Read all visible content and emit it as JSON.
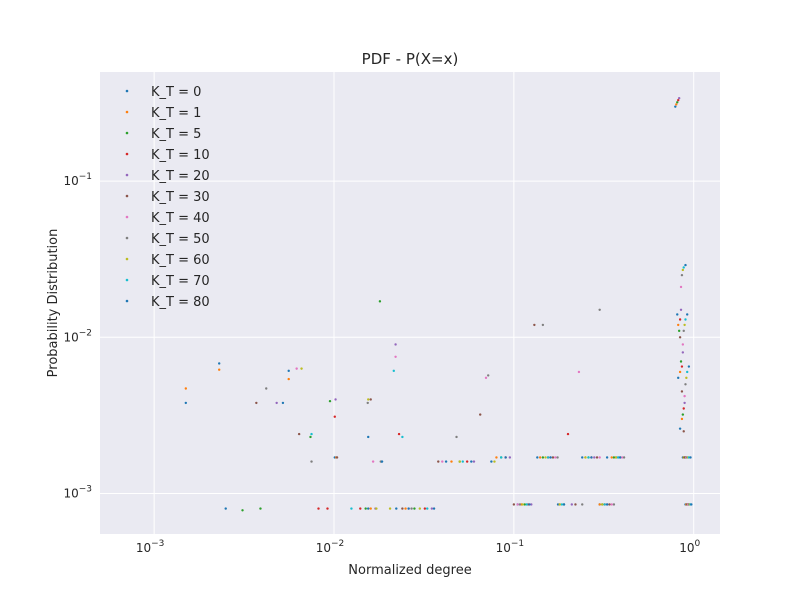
{
  "chart_data": {
    "type": "scatter",
    "title": "PDF - P(X=x)",
    "xlabel": "Normalized degree",
    "ylabel": "Probability Distribution",
    "xscale": "log",
    "yscale": "log",
    "xlim": [
      0.0005,
      1.4
    ],
    "ylim": [
      0.00055,
      0.5
    ],
    "grid": true,
    "legend": "upper-left",
    "x_ticks": [
      {
        "value": 0.001,
        "base": "10",
        "exp": "−3"
      },
      {
        "value": 0.01,
        "base": "10",
        "exp": "−2"
      },
      {
        "value": 0.1,
        "base": "10",
        "exp": "−1"
      },
      {
        "value": 1,
        "base": "10",
        "exp": "0"
      }
    ],
    "y_ticks": [
      {
        "value": 0.001,
        "base": "10",
        "exp": "−3"
      },
      {
        "value": 0.01,
        "base": "10",
        "exp": "−2"
      },
      {
        "value": 0.1,
        "base": "10",
        "exp": "−1"
      }
    ],
    "series": [
      {
        "name": "K_T = 0",
        "color": "#1f77b4",
        "points": [
          [
            0.0015,
            0.0038
          ],
          [
            0.0023,
            0.0068
          ],
          [
            0.0052,
            0.0038
          ],
          [
            0.0056,
            0.0061
          ],
          [
            0.0101,
            0.0017
          ],
          [
            0.0155,
            0.0008
          ],
          [
            0.0184,
            0.0016
          ],
          [
            0.0222,
            0.0008
          ],
          [
            0.042,
            0.0016
          ],
          [
            0.075,
            0.0016
          ],
          [
            0.105,
            0.00085
          ],
          [
            0.135,
            0.0017
          ],
          [
            0.176,
            0.00085
          ],
          [
            0.24,
            0.0017
          ],
          [
            0.3,
            0.00085
          ],
          [
            0.33,
            0.0017
          ],
          [
            0.79,
            0.3
          ],
          [
            0.81,
            0.014
          ],
          [
            0.82,
            0.0055
          ],
          [
            0.84,
            0.0026
          ],
          [
            0.87,
            0.0017
          ],
          [
            0.9,
            0.00085
          ]
        ]
      },
      {
        "name": "K_T = 1",
        "color": "#ff7f0e",
        "points": [
          [
            0.0015,
            0.0047
          ],
          [
            0.0023,
            0.0062
          ],
          [
            0.0056,
            0.0054
          ],
          [
            0.0103,
            0.0017
          ],
          [
            0.016,
            0.0008
          ],
          [
            0.025,
            0.0008
          ],
          [
            0.045,
            0.0016
          ],
          [
            0.08,
            0.0017
          ],
          [
            0.11,
            0.00085
          ],
          [
            0.14,
            0.0017
          ],
          [
            0.18,
            0.00085
          ],
          [
            0.25,
            0.0017
          ],
          [
            0.3,
            0.00085
          ],
          [
            0.35,
            0.0017
          ],
          [
            0.8,
            0.31
          ],
          [
            0.82,
            0.012
          ],
          [
            0.84,
            0.006
          ],
          [
            0.86,
            0.003
          ],
          [
            0.88,
            0.0017
          ],
          [
            0.91,
            0.00085
          ]
        ]
      },
      {
        "name": "K_T = 5",
        "color": "#2ca02c",
        "points": [
          [
            0.0031,
            0.00078
          ],
          [
            0.0039,
            0.0008
          ],
          [
            0.0074,
            0.0023
          ],
          [
            0.0095,
            0.0039
          ],
          [
            0.015,
            0.0008
          ],
          [
            0.018,
            0.017
          ],
          [
            0.028,
            0.0008
          ],
          [
            0.05,
            0.0016
          ],
          [
            0.085,
            0.0017
          ],
          [
            0.115,
            0.00085
          ],
          [
            0.145,
            0.0017
          ],
          [
            0.19,
            0.00085
          ],
          [
            0.26,
            0.0017
          ],
          [
            0.31,
            0.00085
          ],
          [
            0.36,
            0.0017
          ],
          [
            0.81,
            0.32
          ],
          [
            0.83,
            0.011
          ],
          [
            0.85,
            0.007
          ],
          [
            0.87,
            0.0032
          ],
          [
            0.89,
            0.0017
          ],
          [
            0.92,
            0.00085
          ]
        ]
      },
      {
        "name": "K_T = 10",
        "color": "#d62728",
        "points": [
          [
            0.0082,
            0.0008
          ],
          [
            0.0092,
            0.0008
          ],
          [
            0.0101,
            0.0031
          ],
          [
            0.014,
            0.0008
          ],
          [
            0.023,
            0.0024
          ],
          [
            0.032,
            0.0008
          ],
          [
            0.055,
            0.0016
          ],
          [
            0.09,
            0.0017
          ],
          [
            0.12,
            0.00085
          ],
          [
            0.155,
            0.0017
          ],
          [
            0.2,
            0.0024
          ],
          [
            0.27,
            0.0017
          ],
          [
            0.32,
            0.00085
          ],
          [
            0.37,
            0.0017
          ],
          [
            0.82,
            0.33
          ],
          [
            0.84,
            0.013
          ],
          [
            0.86,
            0.0065
          ],
          [
            0.88,
            0.0035
          ],
          [
            0.9,
            0.0017
          ],
          [
            0.93,
            0.00085
          ]
        ]
      },
      {
        "name": "K_T = 20",
        "color": "#9467bd",
        "points": [
          [
            0.0048,
            0.0038
          ],
          [
            0.0102,
            0.004
          ],
          [
            0.017,
            0.0008
          ],
          [
            0.022,
            0.009
          ],
          [
            0.035,
            0.0008
          ],
          [
            0.06,
            0.0016
          ],
          [
            0.095,
            0.0017
          ],
          [
            0.125,
            0.00085
          ],
          [
            0.16,
            0.0017
          ],
          [
            0.21,
            0.00085
          ],
          [
            0.28,
            0.0017
          ],
          [
            0.33,
            0.00085
          ],
          [
            0.38,
            0.0017
          ],
          [
            0.83,
            0.34
          ],
          [
            0.85,
            0.015
          ],
          [
            0.87,
            0.008
          ],
          [
            0.89,
            0.0038
          ],
          [
            0.91,
            0.0017
          ],
          [
            0.94,
            0.00085
          ]
        ]
      },
      {
        "name": "K_T = 30",
        "color": "#8c564b",
        "points": [
          [
            0.0037,
            0.0038
          ],
          [
            0.0064,
            0.0024
          ],
          [
            0.0104,
            0.0017
          ],
          [
            0.016,
            0.004
          ],
          [
            0.024,
            0.0008
          ],
          [
            0.038,
            0.0016
          ],
          [
            0.065,
            0.0032
          ],
          [
            0.1,
            0.00085
          ],
          [
            0.13,
            0.012
          ],
          [
            0.165,
            0.0017
          ],
          [
            0.22,
            0.00085
          ],
          [
            0.29,
            0.0017
          ],
          [
            0.34,
            0.00085
          ],
          [
            0.39,
            0.0017
          ],
          [
            0.84,
            0.01
          ],
          [
            0.86,
            0.0045
          ],
          [
            0.88,
            0.0025
          ],
          [
            0.9,
            0.0017
          ],
          [
            0.92,
            0.00085
          ]
        ]
      },
      {
        "name": "K_T = 40",
        "color": "#e377c2",
        "points": [
          [
            0.0062,
            0.0063
          ],
          [
            0.0165,
            0.0016
          ],
          [
            0.022,
            0.0075
          ],
          [
            0.026,
            0.0008
          ],
          [
            0.04,
            0.0016
          ],
          [
            0.07,
            0.0055
          ],
          [
            0.105,
            0.00085
          ],
          [
            0.17,
            0.0017
          ],
          [
            0.23,
            0.006
          ],
          [
            0.3,
            0.0017
          ],
          [
            0.35,
            0.00085
          ],
          [
            0.4,
            0.0017
          ],
          [
            0.85,
            0.021
          ],
          [
            0.87,
            0.009
          ],
          [
            0.89,
            0.0042
          ],
          [
            0.91,
            0.0017
          ],
          [
            0.93,
            0.00085
          ]
        ]
      },
      {
        "name": "K_T = 50",
        "color": "#7f7f7f",
        "points": [
          [
            0.0042,
            0.0047
          ],
          [
            0.0075,
            0.0016
          ],
          [
            0.0154,
            0.0038
          ],
          [
            0.0182,
            0.0016
          ],
          [
            0.027,
            0.0008
          ],
          [
            0.048,
            0.0023
          ],
          [
            0.072,
            0.0057
          ],
          [
            0.108,
            0.00085
          ],
          [
            0.145,
            0.012
          ],
          [
            0.175,
            0.0017
          ],
          [
            0.24,
            0.00085
          ],
          [
            0.3,
            0.015
          ],
          [
            0.36,
            0.00085
          ],
          [
            0.41,
            0.0017
          ],
          [
            0.86,
            0.025
          ],
          [
            0.88,
            0.011
          ],
          [
            0.9,
            0.005
          ],
          [
            0.92,
            0.0017
          ],
          [
            0.94,
            0.00085
          ]
        ]
      },
      {
        "name": "K_T = 60",
        "color": "#bcbd22",
        "points": [
          [
            0.0066,
            0.0063
          ],
          [
            0.0155,
            0.004
          ],
          [
            0.0172,
            0.0008
          ],
          [
            0.0205,
            0.0008
          ],
          [
            0.03,
            0.0008
          ],
          [
            0.05,
            0.0016
          ],
          [
            0.078,
            0.0016
          ],
          [
            0.112,
            0.00085
          ],
          [
            0.15,
            0.0017
          ],
          [
            0.18,
            0.00085
          ],
          [
            0.25,
            0.0017
          ],
          [
            0.31,
            0.00085
          ],
          [
            0.37,
            0.0017
          ],
          [
            0.87,
            0.027
          ],
          [
            0.89,
            0.012
          ],
          [
            0.91,
            0.0055
          ],
          [
            0.93,
            0.0017
          ],
          [
            0.95,
            0.00085
          ]
        ]
      },
      {
        "name": "K_T = 70",
        "color": "#17becf",
        "points": [
          [
            0.0075,
            0.0024
          ],
          [
            0.0125,
            0.0008
          ],
          [
            0.0215,
            0.0061
          ],
          [
            0.024,
            0.0023
          ],
          [
            0.033,
            0.0008
          ],
          [
            0.052,
            0.0016
          ],
          [
            0.085,
            0.0017
          ],
          [
            0.118,
            0.00085
          ],
          [
            0.155,
            0.0017
          ],
          [
            0.185,
            0.00085
          ],
          [
            0.26,
            0.0017
          ],
          [
            0.32,
            0.00085
          ],
          [
            0.38,
            0.0017
          ],
          [
            0.88,
            0.028
          ],
          [
            0.9,
            0.013
          ],
          [
            0.92,
            0.006
          ],
          [
            0.94,
            0.0017
          ],
          [
            0.96,
            0.00085
          ]
        ]
      },
      {
        "name": "K_T = 80",
        "color": "#1f77b4",
        "points": [
          [
            0.0025,
            0.0008
          ],
          [
            0.0155,
            0.0023
          ],
          [
            0.0185,
            0.0016
          ],
          [
            0.026,
            0.0008
          ],
          [
            0.036,
            0.0008
          ],
          [
            0.058,
            0.0016
          ],
          [
            0.09,
            0.0017
          ],
          [
            0.122,
            0.00085
          ],
          [
            0.16,
            0.0017
          ],
          [
            0.19,
            0.00085
          ],
          [
            0.27,
            0.0017
          ],
          [
            0.33,
            0.00085
          ],
          [
            0.39,
            0.0017
          ],
          [
            0.9,
            0.029
          ],
          [
            0.92,
            0.014
          ],
          [
            0.94,
            0.0065
          ],
          [
            0.96,
            0.0017
          ],
          [
            0.97,
            0.00085
          ]
        ]
      }
    ]
  }
}
